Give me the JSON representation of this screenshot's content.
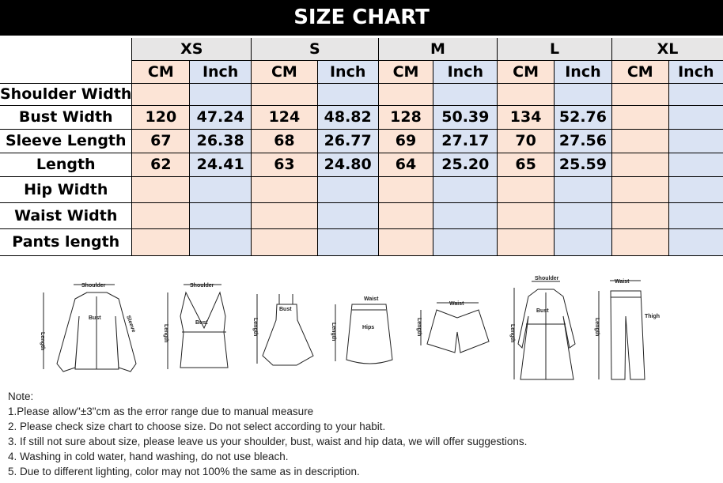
{
  "title": "SIZE CHART",
  "sizes": [
    "XS",
    "S",
    "M",
    "L",
    "XL"
  ],
  "units": [
    "CM",
    "Inch"
  ],
  "rows": [
    {
      "label": "Shoulder Width",
      "values": [
        "",
        "",
        "",
        "",
        "",
        "",
        "",
        "",
        "",
        ""
      ]
    },
    {
      "label": "Bust Width",
      "values": [
        "120",
        "47.24",
        "124",
        "48.82",
        "128",
        "50.39",
        "134",
        "52.76",
        "",
        ""
      ]
    },
    {
      "label": "Sleeve Length",
      "values": [
        "67",
        "26.38",
        "68",
        "26.77",
        "69",
        "27.17",
        "70",
        "27.56",
        "",
        ""
      ]
    },
    {
      "label": "Length",
      "values": [
        "62",
        "24.41",
        "63",
        "24.80",
        "64",
        "25.20",
        "65",
        "25.59",
        "",
        ""
      ]
    },
    {
      "label": "Hip Width",
      "values": [
        "",
        "",
        "",
        "",
        "",
        "",
        "",
        "",
        "",
        ""
      ]
    },
    {
      "label": "Waist Width",
      "values": [
        "",
        "",
        "",
        "",
        "",
        "",
        "",
        "",
        "",
        ""
      ]
    },
    {
      "label": "Pants length",
      "values": [
        "",
        "",
        "",
        "",
        "",
        "",
        "",
        "",
        "",
        ""
      ]
    }
  ],
  "diagram_labels": {
    "shoulder": "Shoulder",
    "length": "Length",
    "bust": "Bust",
    "sleeve": "Sleeve",
    "waist": "Waist",
    "hips": "Hips",
    "thigh": "Thigh"
  },
  "notes": [
    "Note:",
    "1.Please allow\"±3\"cm as the error range due to manual measure",
    "2. Please check size chart to choose size. Do not select according to your habit.",
    "3. If still not sure about size, please leave us your shoulder, bust, waist and hip data, we will offer suggestions.",
    "4. Washing in cold water, hand washing, do not use bleach.",
    "5. Due to different lighting, color may not 100% the same as in description."
  ],
  "colors": {
    "title_bg": "#000000",
    "size_header": "#e7e6e6",
    "cm": "#fce4d6",
    "inch": "#dae3f3"
  }
}
